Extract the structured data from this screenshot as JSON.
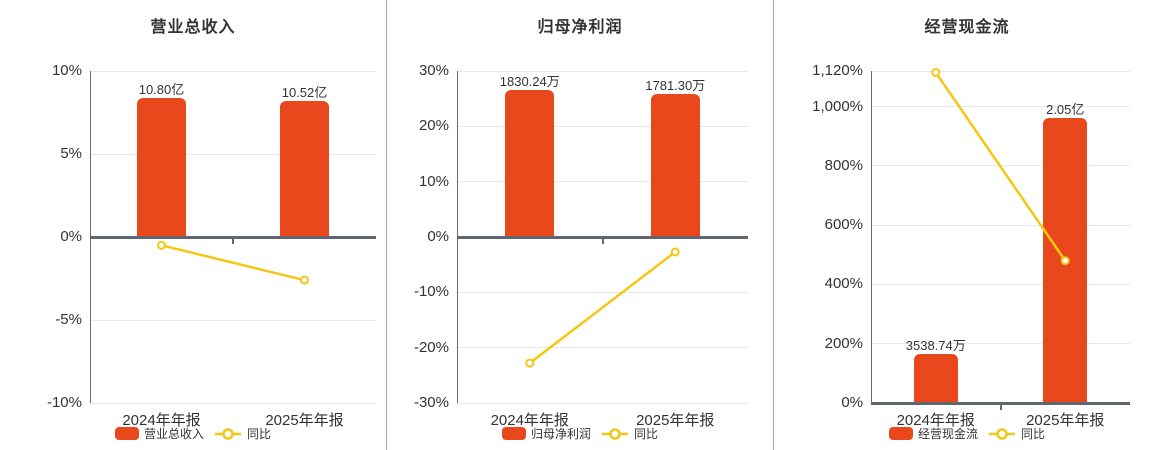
{
  "colors": {
    "bar": "#e8481c",
    "line": "#f5c714",
    "marker_fill": "#ffffff",
    "grid": "#e2eaf1",
    "axis": "#6b6b6b",
    "baseline": "#63666e",
    "divider": "#ababab",
    "text": "#333333"
  },
  "chart_data": [
    {
      "type": "bar+line",
      "title": "营业总收入",
      "categories": [
        "2024年年报",
        "2025年年报"
      ],
      "bar_series": {
        "name": "营业总收入",
        "value_labels": [
          "10.80亿",
          "10.52亿"
        ],
        "heights_on_pct_axis": [
          8.4,
          8.18
        ]
      },
      "line_series": {
        "name": "同比",
        "values_pct": [
          -0.5,
          -2.6
        ]
      },
      "y_axis": {
        "tick_labels": [
          "10%",
          "5%",
          "0%",
          "-5%",
          "-10%"
        ],
        "tick_values": [
          10,
          5,
          0,
          -5,
          -10
        ],
        "range": [
          -10,
          10
        ]
      },
      "grid": true,
      "legend_position": "bottom"
    },
    {
      "type": "bar+line",
      "title": "归母净利润",
      "categories": [
        "2024年年报",
        "2025年年报"
      ],
      "bar_series": {
        "name": "归母净利润",
        "value_labels": [
          "1830.24万",
          "1781.30万"
        ],
        "heights_on_pct_axis": [
          26.5,
          25.8
        ]
      },
      "line_series": {
        "name": "同比",
        "values_pct": [
          -22.8,
          -2.7
        ]
      },
      "y_axis": {
        "tick_labels": [
          "30%",
          "20%",
          "10%",
          "0%",
          "-10%",
          "-20%",
          "-30%"
        ],
        "tick_values": [
          30,
          20,
          10,
          0,
          -10,
          -20,
          -30
        ],
        "range": [
          -30,
          30
        ]
      },
      "grid": true,
      "legend_position": "bottom"
    },
    {
      "type": "bar+line",
      "title": "经营现金流",
      "categories": [
        "2024年年报",
        "2025年年报"
      ],
      "bar_series": {
        "name": "经营现金流",
        "value_labels": [
          "3538.74万",
          "2.05亿"
        ],
        "heights_on_pct_axis": [
          166,
          962
        ]
      },
      "line_series": {
        "name": "同比",
        "values_pct": [
          1115,
          480
        ]
      },
      "y_axis": {
        "tick_labels": [
          "1,120%",
          "1,000%",
          "800%",
          "600%",
          "400%",
          "200%",
          "0%"
        ],
        "tick_values": [
          1120,
          1000,
          800,
          600,
          400,
          200,
          0
        ],
        "range": [
          0,
          1120
        ]
      },
      "grid": true,
      "legend_position": "bottom"
    }
  ]
}
